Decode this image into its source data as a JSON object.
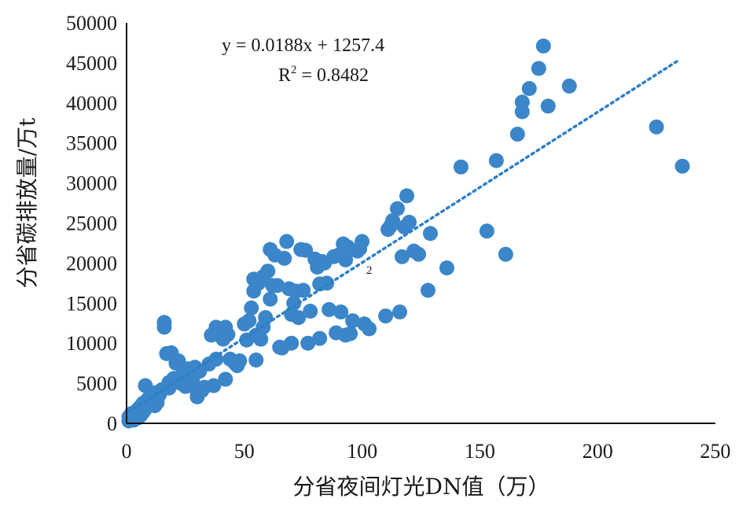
{
  "chart_data": {
    "type": "scatter",
    "xlabel": "分省夜间灯光DN值（万）",
    "ylabel": "分省碳排放量/万t",
    "xlim": [
      0,
      250
    ],
    "ylim": [
      0,
      50000
    ],
    "x_ticks": [
      "0",
      "50",
      "100",
      "150",
      "200",
      "250"
    ],
    "y_ticks": [
      "0",
      "5000",
      "10000",
      "15000",
      "20000",
      "25000",
      "30000",
      "35000",
      "40000",
      "45000",
      "50000"
    ],
    "annotations": {
      "equation": "y = 0.0188x + 1257.4",
      "r2_label": "R",
      "r2_sup": "2",
      "r2_value": " = 0.8482",
      "stray_label": "2"
    },
    "trendline": {
      "slope": 0.0188,
      "intercept": 1257.4,
      "x_range": [
        0,
        234
      ],
      "style": "dotted"
    },
    "marker_color": "#3a86c8",
    "trend_color": "#2e7fc4",
    "points": [
      [
        1,
        300
      ],
      [
        1,
        800
      ],
      [
        2,
        500
      ],
      [
        2,
        1200
      ],
      [
        3,
        400
      ],
      [
        3,
        900
      ],
      [
        4,
        600
      ],
      [
        4,
        1500
      ],
      [
        5,
        700
      ],
      [
        5,
        1800
      ],
      [
        6,
        1000
      ],
      [
        6,
        2100
      ],
      [
        7,
        1400
      ],
      [
        7,
        2500
      ],
      [
        8,
        4700
      ],
      [
        8,
        1800
      ],
      [
        9,
        2300
      ],
      [
        9,
        3000
      ],
      [
        10,
        2800
      ],
      [
        11,
        3300
      ],
      [
        12,
        2200
      ],
      [
        12,
        3800
      ],
      [
        13,
        2600
      ],
      [
        14,
        3600
      ],
      [
        15,
        4200
      ],
      [
        16,
        12000
      ],
      [
        16,
        12600
      ],
      [
        17,
        8700
      ],
      [
        18,
        5100
      ],
      [
        18,
        4400
      ],
      [
        19,
        8800
      ],
      [
        20,
        5600
      ],
      [
        21,
        7500
      ],
      [
        22,
        7800
      ],
      [
        23,
        5000
      ],
      [
        24,
        6200
      ],
      [
        25,
        4600
      ],
      [
        26,
        6800
      ],
      [
        27,
        6000
      ],
      [
        28,
        5500
      ],
      [
        29,
        7000
      ],
      [
        30,
        3300
      ],
      [
        30,
        3900
      ],
      [
        31,
        6500
      ],
      [
        32,
        4100
      ],
      [
        33,
        4500
      ],
      [
        35,
        7400
      ],
      [
        36,
        11000
      ],
      [
        37,
        4700
      ],
      [
        38,
        8000
      ],
      [
        38,
        12000
      ],
      [
        39,
        11600
      ],
      [
        40,
        11000
      ],
      [
        41,
        10500
      ],
      [
        42,
        12000
      ],
      [
        42,
        5500
      ],
      [
        43,
        11100
      ],
      [
        44,
        8000
      ],
      [
        46,
        7500
      ],
      [
        47,
        7200
      ],
      [
        48,
        7800
      ],
      [
        50,
        12400
      ],
      [
        51,
        10400
      ],
      [
        52,
        12800
      ],
      [
        53,
        14400
      ],
      [
        54,
        18000
      ],
      [
        54,
        16500
      ],
      [
        55,
        11000
      ],
      [
        55,
        7900
      ],
      [
        56,
        17500
      ],
      [
        57,
        10500
      ],
      [
        58,
        12000
      ],
      [
        58,
        18300
      ],
      [
        59,
        13200
      ],
      [
        60,
        19000
      ],
      [
        61,
        21700
      ],
      [
        61,
        15500
      ],
      [
        62,
        17200
      ],
      [
        63,
        21000
      ],
      [
        64,
        17200
      ],
      [
        65,
        9500
      ],
      [
        66,
        9400
      ],
      [
        67,
        20600
      ],
      [
        68,
        22700
      ],
      [
        69,
        16800
      ],
      [
        70,
        10000
      ],
      [
        70,
        13600
      ],
      [
        71,
        15000
      ],
      [
        72,
        16500
      ],
      [
        73,
        13200
      ],
      [
        74,
        21700
      ],
      [
        75,
        16600
      ],
      [
        76,
        21600
      ],
      [
        77,
        10000
      ],
      [
        78,
        14000
      ],
      [
        80,
        20500
      ],
      [
        81,
        19500
      ],
      [
        82,
        17400
      ],
      [
        82,
        10600
      ],
      [
        83,
        20200
      ],
      [
        84,
        20000
      ],
      [
        85,
        17500
      ],
      [
        86,
        14200
      ],
      [
        88,
        20800
      ],
      [
        89,
        11300
      ],
      [
        90,
        21000
      ],
      [
        91,
        13900
      ],
      [
        92,
        22400
      ],
      [
        93,
        20400
      ],
      [
        93,
        11000
      ],
      [
        94,
        22000
      ],
      [
        95,
        11200
      ],
      [
        96,
        12800
      ],
      [
        98,
        21500
      ],
      [
        99,
        21800
      ],
      [
        100,
        22700
      ],
      [
        101,
        12400
      ],
      [
        103,
        11800
      ],
      [
        110,
        13400
      ],
      [
        111,
        24200
      ],
      [
        112,
        24600
      ],
      [
        113,
        25300
      ],
      [
        115,
        26800
      ],
      [
        116,
        13900
      ],
      [
        117,
        20800
      ],
      [
        118,
        24500
      ],
      [
        119,
        28400
      ],
      [
        120,
        25100
      ],
      [
        122,
        21500
      ],
      [
        124,
        21100
      ],
      [
        128,
        16600
      ],
      [
        129,
        23700
      ],
      [
        136,
        19400
      ],
      [
        142,
        32000
      ],
      [
        153,
        24000
      ],
      [
        157,
        32800
      ],
      [
        161,
        21100
      ],
      [
        166,
        36100
      ],
      [
        168,
        38900
      ],
      [
        168,
        40100
      ],
      [
        171,
        41800
      ],
      [
        175,
        44300
      ],
      [
        177,
        47100
      ],
      [
        179,
        39600
      ],
      [
        188,
        42100
      ],
      [
        225,
        37000
      ],
      [
        236,
        32100
      ]
    ]
  }
}
